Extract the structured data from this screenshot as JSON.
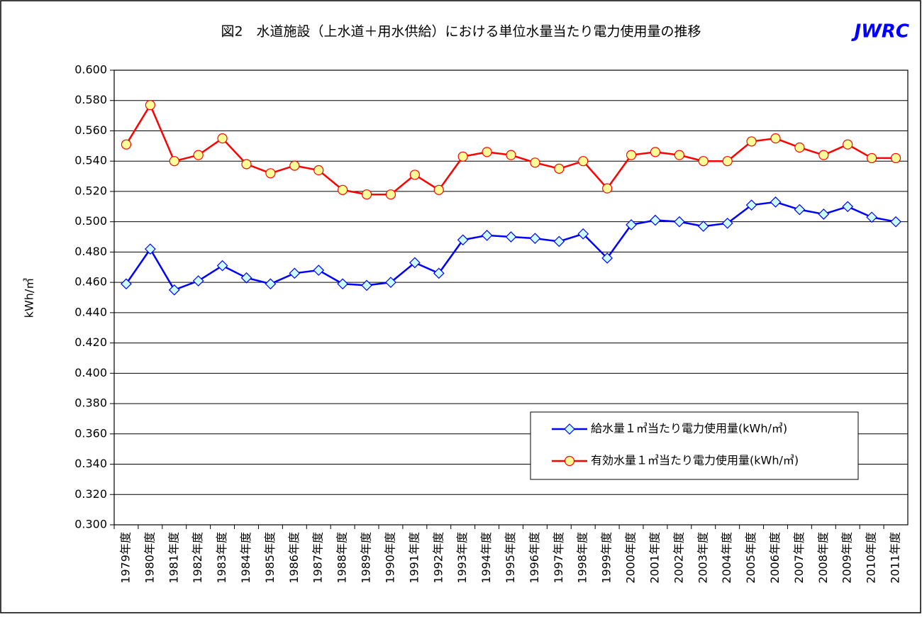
{
  "chart_data": {
    "type": "line",
    "title": "図2　水道施設（上水道＋用水供給）における単位水量当たり電力使用量の推移",
    "logo": "JWRC",
    "y_label": "kWh/㎥",
    "categories": [
      "1979年度",
      "1980年度",
      "1981年度",
      "1982年度",
      "1983年度",
      "1984年度",
      "1985年度",
      "1986年度",
      "1987年度",
      "1988年度",
      "1989年度",
      "1990年度",
      "1991年度",
      "1992年度",
      "1993年度",
      "1994年度",
      "1995年度",
      "1996年度",
      "1997年度",
      "1998年度",
      "1999年度",
      "2000年度",
      "2001年度",
      "2002年度",
      "2003年度",
      "2004年度",
      "2005年度",
      "2006年度",
      "2007年度",
      "2008年度",
      "2009年度",
      "2010年度",
      "2011年度"
    ],
    "series": [
      {
        "name": "給水量１㎥当たり電力使用量(kWh/㎥)",
        "color": "#0000ff",
        "marker": "diamond",
        "marker_fill": "#ccffff",
        "values": [
          0.459,
          0.482,
          0.455,
          0.461,
          0.471,
          0.463,
          0.459,
          0.466,
          0.468,
          0.459,
          0.458,
          0.46,
          0.473,
          0.466,
          0.488,
          0.491,
          0.49,
          0.489,
          0.487,
          0.492,
          0.476,
          0.498,
          0.501,
          0.5,
          0.497,
          0.499,
          0.511,
          0.513,
          0.508,
          0.505,
          0.51,
          0.503,
          0.5
        ]
      },
      {
        "name": "有効水量１㎥当たり電力使用量(kWh/㎥)",
        "color": "#ff0000",
        "marker": "circle",
        "marker_fill": "#ffff99",
        "values": [
          0.551,
          0.577,
          0.54,
          0.544,
          0.555,
          0.538,
          0.532,
          0.537,
          0.534,
          0.521,
          0.518,
          0.518,
          0.531,
          0.521,
          0.543,
          0.546,
          0.544,
          0.539,
          0.535,
          0.54,
          0.522,
          0.544,
          0.546,
          0.544,
          0.54,
          0.54,
          0.553,
          0.555,
          0.549,
          0.544,
          0.551,
          0.542,
          0.542
        ]
      }
    ],
    "ylim": [
      0.3,
      0.6
    ],
    "yticks": [
      {
        "value": 0.3,
        "label": "0.300"
      },
      {
        "value": 0.32,
        "label": "0.320"
      },
      {
        "value": 0.34,
        "label": "0.340"
      },
      {
        "value": 0.36,
        "label": "0.360"
      },
      {
        "value": 0.38,
        "label": "0.380"
      },
      {
        "value": 0.4,
        "label": "0.400"
      },
      {
        "value": 0.42,
        "label": "0.420"
      },
      {
        "value": 0.44,
        "label": "0.440"
      },
      {
        "value": 0.46,
        "label": "0.460"
      },
      {
        "value": 0.48,
        "label": "0.480"
      },
      {
        "value": 0.5,
        "label": "0.500"
      },
      {
        "value": 0.52,
        "label": "0.520"
      },
      {
        "value": 0.54,
        "label": "0.540"
      },
      {
        "value": 0.56,
        "label": "0.560"
      },
      {
        "value": 0.58,
        "label": "0.580"
      },
      {
        "value": 0.6,
        "label": "0.600"
      }
    ],
    "grid": true,
    "legend_position": "lower right"
  }
}
